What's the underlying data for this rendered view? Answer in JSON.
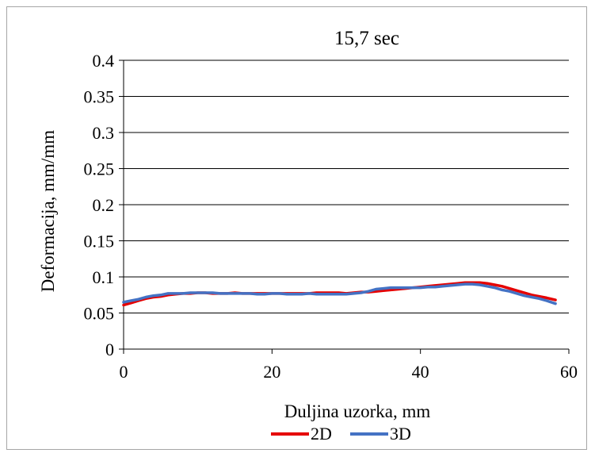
{
  "chart_data": {
    "type": "line",
    "title": "15,7 sec",
    "xlabel": "Duljina uzorka, mm",
    "ylabel": "Deformacija,  mm/mm",
    "xlim": [
      0,
      60
    ],
    "ylim": [
      0,
      0.4
    ],
    "x_ticks": [
      0,
      20,
      40,
      60
    ],
    "x_tick_labels": [
      "0",
      "20",
      "40",
      "60"
    ],
    "y_ticks": [
      0,
      0.05,
      0.1,
      0.15,
      0.2,
      0.25,
      0.3,
      0.35,
      0.4
    ],
    "y_tick_labels": [
      "0",
      "0.05",
      "0.1",
      "0.15",
      "0.2",
      "0.25",
      "0.3",
      "0.35",
      "0.4"
    ],
    "grid": "horizontal",
    "legend_position": "bottom",
    "series": [
      {
        "name": "2D",
        "color": "#e50000",
        "x": [
          0,
          1,
          2,
          3,
          4,
          5,
          6,
          7,
          8,
          9,
          10,
          11,
          12,
          13,
          14,
          15,
          16,
          17,
          18,
          19,
          20,
          21,
          22,
          23,
          24,
          25,
          26,
          27,
          28,
          29,
          30,
          31,
          32,
          33,
          34,
          35,
          36,
          37,
          38,
          39,
          40,
          41,
          42,
          43,
          44,
          45,
          46,
          47,
          48,
          49,
          50,
          51,
          52,
          53,
          54,
          55,
          56,
          57,
          58.2
        ],
        "y": [
          0.061,
          0.064,
          0.067,
          0.07,
          0.072,
          0.073,
          0.075,
          0.076,
          0.077,
          0.077,
          0.078,
          0.078,
          0.077,
          0.077,
          0.077,
          0.078,
          0.077,
          0.077,
          0.077,
          0.077,
          0.077,
          0.077,
          0.077,
          0.077,
          0.077,
          0.077,
          0.078,
          0.078,
          0.078,
          0.078,
          0.077,
          0.078,
          0.079,
          0.079,
          0.08,
          0.081,
          0.082,
          0.083,
          0.084,
          0.085,
          0.086,
          0.087,
          0.088,
          0.089,
          0.09,
          0.091,
          0.092,
          0.092,
          0.092,
          0.091,
          0.089,
          0.087,
          0.084,
          0.081,
          0.078,
          0.075,
          0.073,
          0.071,
          0.068
        ]
      },
      {
        "name": "3D",
        "color": "#4472c4",
        "x": [
          0,
          1,
          2,
          3,
          4,
          5,
          6,
          7,
          8,
          9,
          10,
          11,
          12,
          13,
          14,
          15,
          16,
          17,
          18,
          19,
          20,
          21,
          22,
          23,
          24,
          25,
          26,
          27,
          28,
          29,
          30,
          31,
          32,
          33,
          34,
          35,
          36,
          37,
          38,
          39,
          40,
          41,
          42,
          43,
          44,
          45,
          46,
          47,
          48,
          49,
          50,
          51,
          52,
          53,
          54,
          55,
          56,
          57,
          58.2
        ],
        "y": [
          0.065,
          0.067,
          0.069,
          0.072,
          0.074,
          0.075,
          0.077,
          0.077,
          0.077,
          0.078,
          0.078,
          0.078,
          0.078,
          0.077,
          0.077,
          0.077,
          0.077,
          0.077,
          0.076,
          0.076,
          0.077,
          0.077,
          0.076,
          0.076,
          0.076,
          0.077,
          0.076,
          0.076,
          0.076,
          0.076,
          0.076,
          0.077,
          0.078,
          0.08,
          0.083,
          0.084,
          0.085,
          0.085,
          0.085,
          0.085,
          0.085,
          0.086,
          0.086,
          0.087,
          0.088,
          0.089,
          0.09,
          0.09,
          0.089,
          0.087,
          0.085,
          0.082,
          0.08,
          0.077,
          0.074,
          0.072,
          0.07,
          0.067,
          0.063
        ]
      }
    ]
  }
}
